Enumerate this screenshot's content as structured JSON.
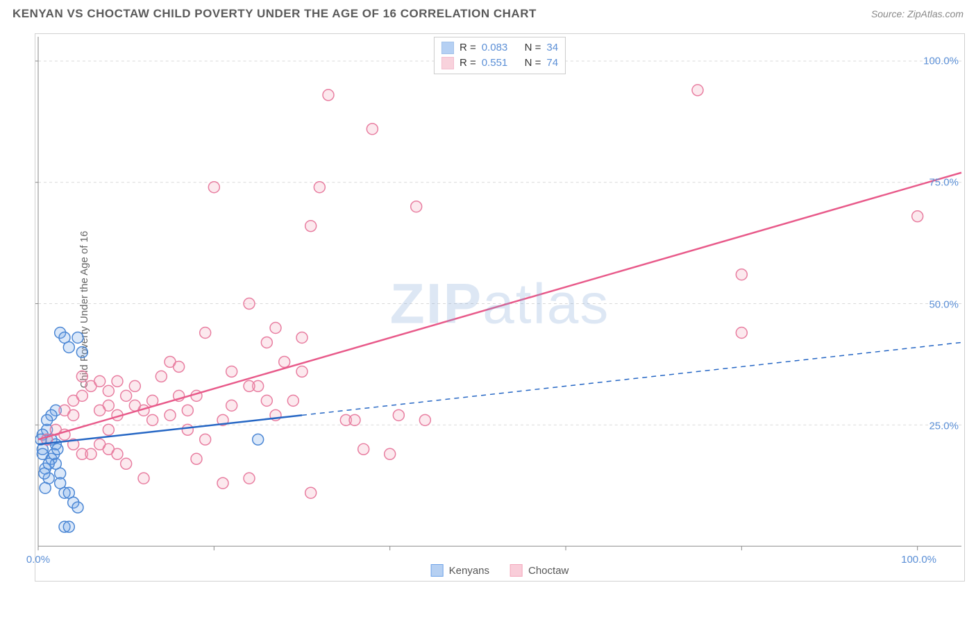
{
  "header": {
    "title": "KENYAN VS CHOCTAW CHILD POVERTY UNDER THE AGE OF 16 CORRELATION CHART",
    "source": "Source: ZipAtlas.com"
  },
  "yAxisLabel": "Child Poverty Under the Age of 16",
  "watermark": {
    "part1": "ZIP",
    "part2": "atlas"
  },
  "chart": {
    "type": "scatter",
    "xlim": [
      0,
      105
    ],
    "ylim": [
      0,
      105
    ],
    "xticks": [
      0,
      20,
      40,
      60,
      80,
      100
    ],
    "yticks": [
      25,
      50,
      75,
      100
    ],
    "xTickLabels": {
      "0": "0.0%",
      "100": "100.0%"
    },
    "yTickLabels": {
      "25": "25.0%",
      "50": "50.0%",
      "75": "75.0%",
      "100": "100.0%"
    },
    "gridColor": "#d9d9d9",
    "axisColor": "#888888",
    "background": "#ffffff",
    "markerRadius": 8,
    "markerStrokeWidth": 1.5,
    "markerFillOpacity": 0.25,
    "series": [
      {
        "name": "Kenyans",
        "color": "#6ea3e8",
        "strokeColor": "#4a86d4",
        "R": "0.083",
        "N": "34",
        "trend": {
          "x1": 0,
          "y1": 21,
          "x2": 105,
          "y2": 42,
          "solidUntilX": 30,
          "lineColor": "#2566c4",
          "lineWidth": 2.5
        },
        "points": [
          [
            0.5,
            20
          ],
          [
            1,
            22
          ],
          [
            1.5,
            18
          ],
          [
            0.8,
            16
          ],
          [
            1.2,
            14
          ],
          [
            2.5,
            44
          ],
          [
            3,
            43
          ],
          [
            3.5,
            41
          ],
          [
            2,
            28
          ],
          [
            1.5,
            27
          ],
          [
            1,
            24
          ],
          [
            0.5,
            19
          ],
          [
            2,
            17
          ],
          [
            2.5,
            15
          ],
          [
            0.8,
            12
          ],
          [
            3,
            11
          ],
          [
            3.5,
            11
          ],
          [
            4,
            9
          ],
          [
            4.5,
            8
          ],
          [
            1,
            26
          ],
          [
            1.5,
            22
          ],
          [
            2,
            21
          ],
          [
            0.5,
            23
          ],
          [
            2.5,
            13
          ],
          [
            3,
            4
          ],
          [
            3.5,
            4
          ],
          [
            1.8,
            19
          ],
          [
            2.2,
            20
          ],
          [
            0.3,
            22
          ],
          [
            0.7,
            15
          ],
          [
            4.5,
            43
          ],
          [
            5,
            40
          ],
          [
            25,
            22
          ],
          [
            1.2,
            17
          ]
        ]
      },
      {
        "name": "Choctaw",
        "color": "#f3a7bb",
        "strokeColor": "#e87da0",
        "R": "0.551",
        "N": "74",
        "trend": {
          "x1": 0,
          "y1": 22,
          "x2": 105,
          "y2": 77,
          "solidUntilX": 105,
          "lineColor": "#e85a8a",
          "lineWidth": 2.5
        },
        "points": [
          [
            1,
            22
          ],
          [
            2,
            24
          ],
          [
            3,
            23
          ],
          [
            4,
            21
          ],
          [
            5,
            19
          ],
          [
            3,
            28
          ],
          [
            4,
            30
          ],
          [
            5,
            31
          ],
          [
            6,
            33
          ],
          [
            7,
            34
          ],
          [
            8,
            29
          ],
          [
            9,
            27
          ],
          [
            10,
            31
          ],
          [
            11,
            33
          ],
          [
            12,
            28
          ],
          [
            13,
            30
          ],
          [
            14,
            35
          ],
          [
            15,
            38
          ],
          [
            16,
            37
          ],
          [
            17,
            28
          ],
          [
            18,
            31
          ],
          [
            19,
            44
          ],
          [
            20,
            74
          ],
          [
            21,
            26
          ],
          [
            22,
            29
          ],
          [
            21,
            13
          ],
          [
            12,
            14
          ],
          [
            8,
            20
          ],
          [
            9,
            19
          ],
          [
            10,
            17
          ],
          [
            24,
            50
          ],
          [
            25,
            33
          ],
          [
            26,
            42
          ],
          [
            27,
            45
          ],
          [
            28,
            38
          ],
          [
            29,
            30
          ],
          [
            30,
            36
          ],
          [
            31,
            66
          ],
          [
            32,
            74
          ],
          [
            33,
            93
          ],
          [
            30,
            43
          ],
          [
            31,
            11
          ],
          [
            24,
            14
          ],
          [
            27,
            27
          ],
          [
            35,
            26
          ],
          [
            36,
            26
          ],
          [
            37,
            20
          ],
          [
            40,
            19
          ],
          [
            38,
            86
          ],
          [
            43,
            70
          ],
          [
            41,
            27
          ],
          [
            44,
            26
          ],
          [
            80,
            56
          ],
          [
            75,
            94
          ],
          [
            80,
            44
          ],
          [
            100,
            68
          ],
          [
            7,
            28
          ],
          [
            8,
            32
          ],
          [
            9,
            34
          ],
          [
            11,
            29
          ],
          [
            13,
            26
          ],
          [
            4,
            27
          ],
          [
            5,
            35
          ],
          [
            6,
            19
          ],
          [
            7,
            21
          ],
          [
            8,
            24
          ],
          [
            17,
            24
          ],
          [
            18,
            18
          ],
          [
            19,
            22
          ],
          [
            15,
            27
          ],
          [
            16,
            31
          ],
          [
            22,
            36
          ],
          [
            24,
            33
          ],
          [
            26,
            30
          ]
        ]
      }
    ]
  },
  "legendBottom": [
    {
      "label": "Kenyans",
      "fill": "#b6d0f2",
      "stroke": "#6ea3e8"
    },
    {
      "label": "Choctaw",
      "fill": "#f9cdd9",
      "stroke": "#f3a7bb"
    }
  ]
}
